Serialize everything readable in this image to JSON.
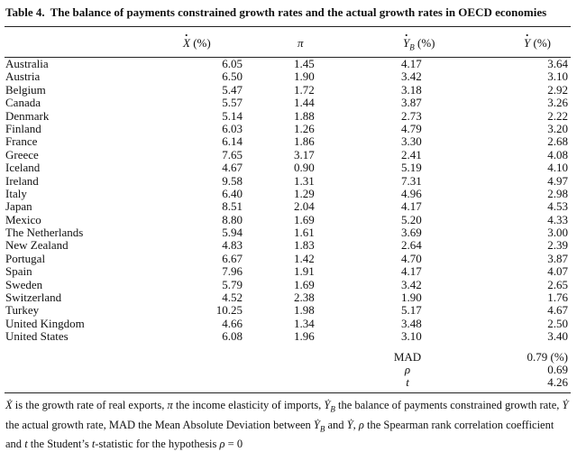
{
  "caption": {
    "number": "Table 4.",
    "title": "The balance of payments constrained growth rates and the actual growth rates in OECD economies"
  },
  "headers": {
    "exports": "X",
    "exports_unit": " (%)",
    "pi": "π",
    "yb": "Y",
    "yb_sub": "B",
    "yb_unit": " (%)",
    "y": "Y",
    "y_unit": " (%)"
  },
  "rows": [
    {
      "country": "Australia",
      "x": "6.05",
      "pi": "1.45",
      "yb": "4.17",
      "y": "3.64"
    },
    {
      "country": "Austria",
      "x": "6.50",
      "pi": "1.90",
      "yb": "3.42",
      "y": "3.10"
    },
    {
      "country": "Belgium",
      "x": "5.47",
      "pi": "1.72",
      "yb": "3.18",
      "y": "2.92"
    },
    {
      "country": "Canada",
      "x": "5.57",
      "pi": "1.44",
      "yb": "3.87",
      "y": "3.26"
    },
    {
      "country": "Denmark",
      "x": "5.14",
      "pi": "1.88",
      "yb": "2.73",
      "y": "2.22"
    },
    {
      "country": "Finland",
      "x": "6.03",
      "pi": "1.26",
      "yb": "4.79",
      "y": "3.20"
    },
    {
      "country": "France",
      "x": "6.14",
      "pi": "1.86",
      "yb": "3.30",
      "y": "2.68"
    },
    {
      "country": "Greece",
      "x": "7.65",
      "pi": "3.17",
      "yb": "2.41",
      "y": "4.08"
    },
    {
      "country": "Iceland",
      "x": "4.67",
      "pi": "0.90",
      "yb": "5.19",
      "y": "4.10"
    },
    {
      "country": "Ireland",
      "x": "9.58",
      "pi": "1.31",
      "yb": "7.31",
      "y": "4.97"
    },
    {
      "country": "Italy",
      "x": "6.40",
      "pi": "1.29",
      "yb": "4.96",
      "y": "2.98"
    },
    {
      "country": "Japan",
      "x": "8.51",
      "pi": "2.04",
      "yb": "4.17",
      "y": "4.53"
    },
    {
      "country": "Mexico",
      "x": "8.80",
      "pi": "1.69",
      "yb": "5.20",
      "y": "4.33"
    },
    {
      "country": "The Netherlands",
      "x": "5.94",
      "pi": "1.61",
      "yb": "3.69",
      "y": "3.00"
    },
    {
      "country": "New Zealand",
      "x": "4.83",
      "pi": "1.83",
      "yb": "2.64",
      "y": "2.39"
    },
    {
      "country": "Portugal",
      "x": "6.67",
      "pi": "1.42",
      "yb": "4.70",
      "y": "3.87"
    },
    {
      "country": "Spain",
      "x": "7.96",
      "pi": "1.91",
      "yb": "4.17",
      "y": "4.07"
    },
    {
      "country": "Sweden",
      "x": "5.79",
      "pi": "1.69",
      "yb": "3.42",
      "y": "2.65"
    },
    {
      "country": "Switzerland",
      "x": "4.52",
      "pi": "2.38",
      "yb": "1.90",
      "y": "1.76"
    },
    {
      "country": "Turkey",
      "x": "10.25",
      "pi": "1.98",
      "yb": "5.17",
      "y": "4.67"
    },
    {
      "country": "United Kingdom",
      "x": "4.66",
      "pi": "1.34",
      "yb": "3.48",
      "y": "2.50"
    },
    {
      "country": "United States",
      "x": "6.08",
      "pi": "1.96",
      "yb": "3.10",
      "y": "3.40"
    }
  ],
  "summary": [
    {
      "label": "MAD",
      "value": "0.79 (%)",
      "italic": false
    },
    {
      "label": "ρ",
      "value": "0.69",
      "italic": true
    },
    {
      "label": "t",
      "value": "4.26",
      "italic": true
    }
  ],
  "footnote": "Ẋ is the growth rate of real exports, π the income elasticity of imports, Ẏ_B the balance of payments constrained growth rate, Ẏ the actual growth rate, MAD the Mean Absolute Deviation between Ẏ_B and Ẏ, ρ the Spearman rank correlation coefficient and t the Student’s t-statistic for the hypothesis ρ = 0"
}
